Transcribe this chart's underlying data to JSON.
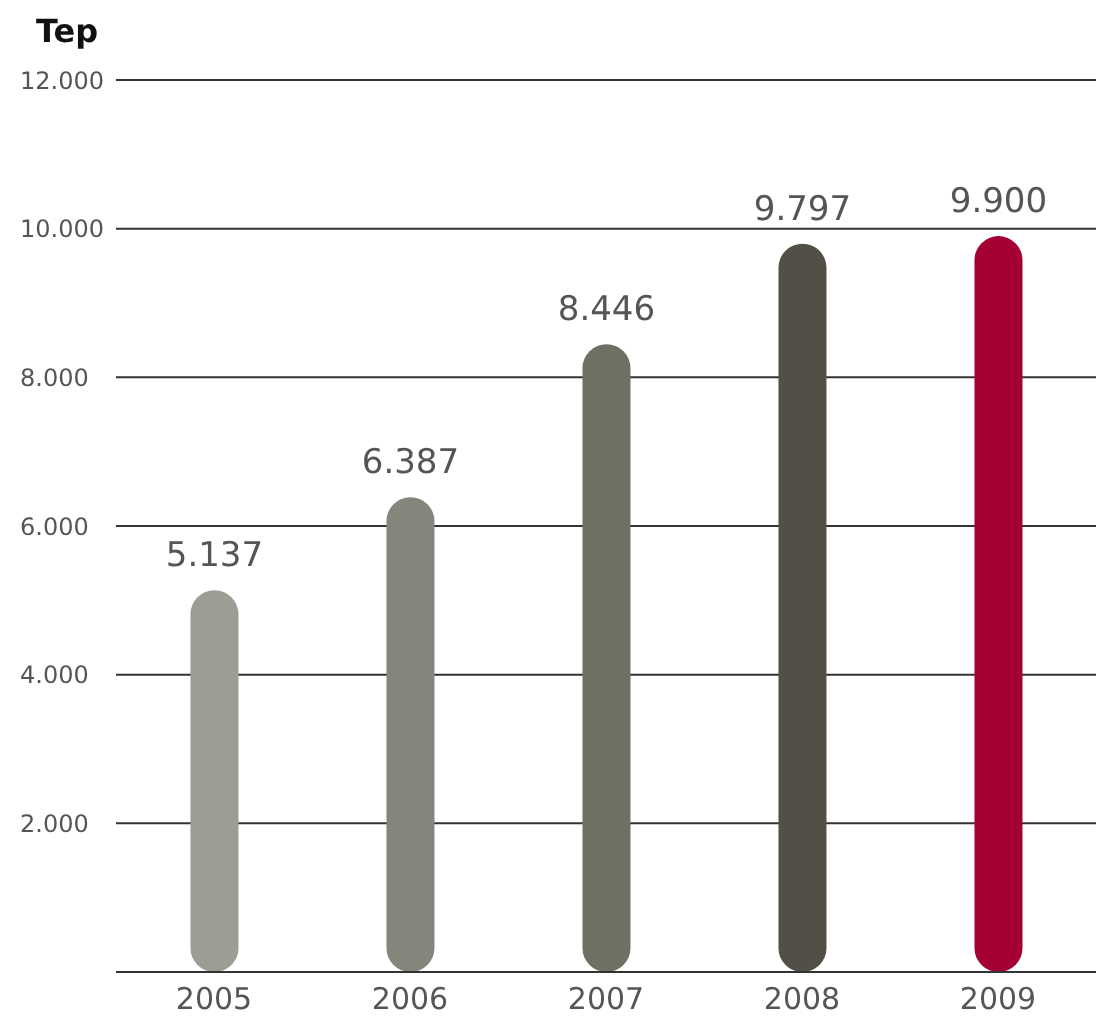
{
  "chart_data": {
    "type": "bar",
    "ylabel": "Tep",
    "categories": [
      "2005",
      "2006",
      "2007",
      "2008",
      "2009"
    ],
    "values": [
      5137,
      6387,
      8446,
      9797,
      9900
    ],
    "colors": [
      "#9d9d95",
      "#85857b",
      "#6f6f63",
      "#525046",
      "#a50034"
    ],
    "value_labels": [
      "5.137",
      "6.387",
      "8.446",
      "9.797",
      "9.900"
    ],
    "ylim": [
      0,
      12000
    ],
    "yticks": [
      {
        "value": 0,
        "label": null
      },
      {
        "value": 2000,
        "label": "2.000"
      },
      {
        "value": 4000,
        "label": "4.000"
      },
      {
        "value": 6000,
        "label": "6.000"
      },
      {
        "value": 8000,
        "label": "8.000"
      },
      {
        "value": 10000,
        "label": "10.000"
      },
      {
        "value": 12000,
        "label": "12.000"
      }
    ],
    "grid": "y",
    "legend": false
  }
}
